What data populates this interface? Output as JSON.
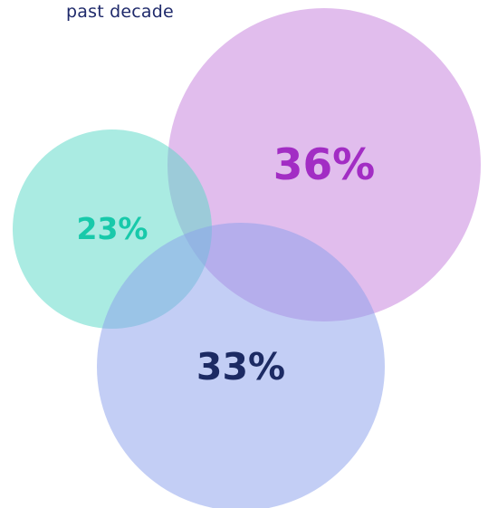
{
  "caption": "past decade",
  "chart_data": {
    "type": "bubble",
    "values": [
      23,
      36,
      33
    ],
    "labels": [
      "23%",
      "36%",
      "33%"
    ],
    "colors": {
      "fills": [
        "#5cd9c7",
        "#c680dc",
        "#8ca2ec"
      ],
      "labels": [
        "#18c9aa",
        "#a22dc4",
        "#1c2a63"
      ]
    }
  }
}
